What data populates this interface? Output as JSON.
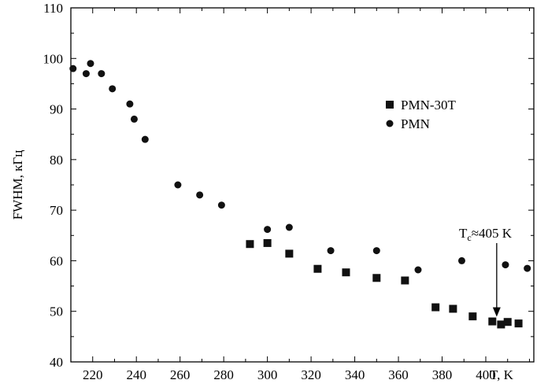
{
  "chart_data": {
    "type": "scatter",
    "xlabel": "T, K",
    "ylabel": "FWHM, кГц",
    "xlim": [
      210,
      422
    ],
    "ylim": [
      40,
      110
    ],
    "xticks": [
      220,
      240,
      260,
      280,
      300,
      320,
      340,
      360,
      380,
      400
    ],
    "yticks": [
      40,
      50,
      60,
      70,
      80,
      90,
      100,
      110
    ],
    "grid": false,
    "legend_position": "top-right",
    "series": [
      {
        "name": "PMN-30T",
        "marker": "square",
        "color": "#111111",
        "points": [
          [
            292,
            63.3
          ],
          [
            300,
            63.5
          ],
          [
            310,
            61.4
          ],
          [
            323,
            58.4
          ],
          [
            336,
            57.7
          ],
          [
            350,
            56.6
          ],
          [
            363,
            56.1
          ],
          [
            377,
            50.8
          ],
          [
            385,
            50.5
          ],
          [
            394,
            49.0
          ],
          [
            403,
            48.0
          ],
          [
            407,
            47.4
          ],
          [
            410,
            47.9
          ],
          [
            415,
            47.6
          ]
        ]
      },
      {
        "name": "PMN",
        "marker": "circle",
        "color": "#111111",
        "points": [
          [
            211,
            98.0
          ],
          [
            217,
            97.0
          ],
          [
            219,
            99.0
          ],
          [
            224,
            97.0
          ],
          [
            229,
            94.0
          ],
          [
            237,
            91.0
          ],
          [
            239,
            88.0
          ],
          [
            244,
            84.0
          ],
          [
            259,
            75.0
          ],
          [
            269,
            73.0
          ],
          [
            279,
            71.0
          ],
          [
            300,
            66.2
          ],
          [
            310,
            66.6
          ],
          [
            329,
            62.0
          ],
          [
            350,
            62.0
          ],
          [
            369,
            58.2
          ],
          [
            389,
            60.0
          ],
          [
            409,
            59.2
          ],
          [
            419,
            58.5
          ]
        ]
      }
    ],
    "annotation": {
      "text_main": "T",
      "text_sub": "c",
      "text_rest": "≈405 K",
      "x": 405,
      "y": 48
    }
  }
}
